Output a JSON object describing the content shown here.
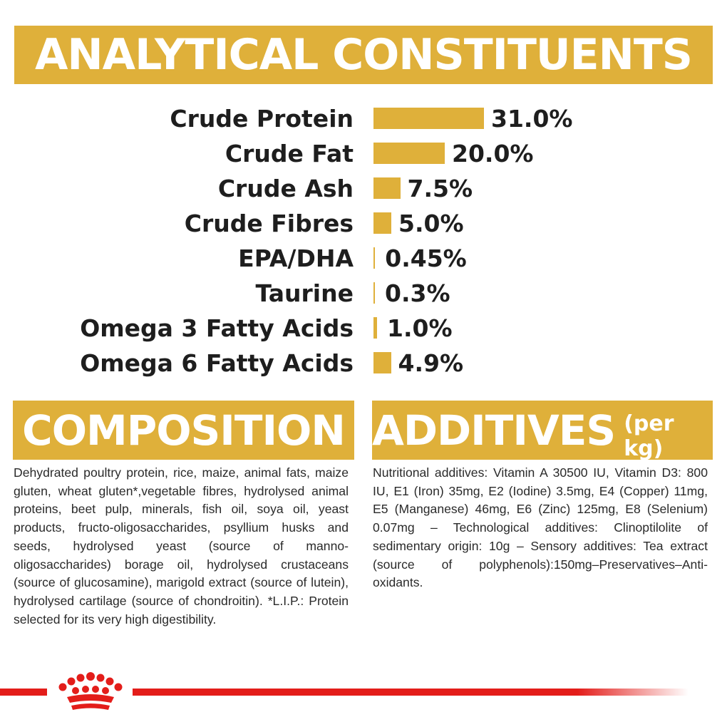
{
  "analytical": {
    "title": "ANALYTICAL CONSTITUENTS",
    "rows": [
      {
        "label": "Crude Protein",
        "value": "31.0%",
        "amount": 31.0
      },
      {
        "label": "Crude Fat",
        "value": "20.0%",
        "amount": 20.0
      },
      {
        "label": "Crude Ash",
        "value": "7.5%",
        "amount": 7.5
      },
      {
        "label": "Crude Fibres",
        "value": "5.0%",
        "amount": 5.0
      },
      {
        "label": "EPA/DHA",
        "value": "0.45%",
        "amount": 0.45
      },
      {
        "label": "Taurine",
        "value": "0.3%",
        "amount": 0.3
      },
      {
        "label": "Omega 3 Fatty Acids",
        "value": "1.0%",
        "amount": 1.0
      },
      {
        "label": "Omega 6 Fatty Acids",
        "value": "4.9%",
        "amount": 4.9
      }
    ]
  },
  "composition": {
    "title": "COMPOSITION",
    "text": "Dehydrated poultry protein, rice, maize, animal fats, maize gluten, wheat gluten*,vegetable fibres, hydrolysed animal proteins, beet pulp, minerals, fish oil, soya oil, yeast products, fructo-oligosaccharides, psyllium husks and seeds, hydrolysed yeast (source of manno-oligosaccharides) borage oil, hydrolysed crustaceans (source of glucosamine), marigold extract (source of lutein), hydrolysed cartilage (source of chondroitin). *L.I.P.: Protein selected for its very high digestibility."
  },
  "additives": {
    "title": "ADDITIVES",
    "title_suffix": "(per kg)",
    "text": "Nutritional additives: Vitamin A 30500 IU, Vitamin D3: 800 IU, E1 (Iron) 35mg, E2 (Iodine) 3.5mg, E4 (Copper) 11mg, E5 (Manganese) 46mg, E6 (Zinc) 125mg, E8 (Selenium) 0.07mg – Technological additives: Clinoptilolite of sedimentary origin: 10g – Sensory additives: Tea extract (source of polyphenols):150mg–Preservatives–Anti-oxidants."
  },
  "colors": {
    "gold": "#dfb03a",
    "red": "#e31d1a",
    "text": "#1e1e1e"
  },
  "logo": {
    "icon": "crown-icon"
  }
}
